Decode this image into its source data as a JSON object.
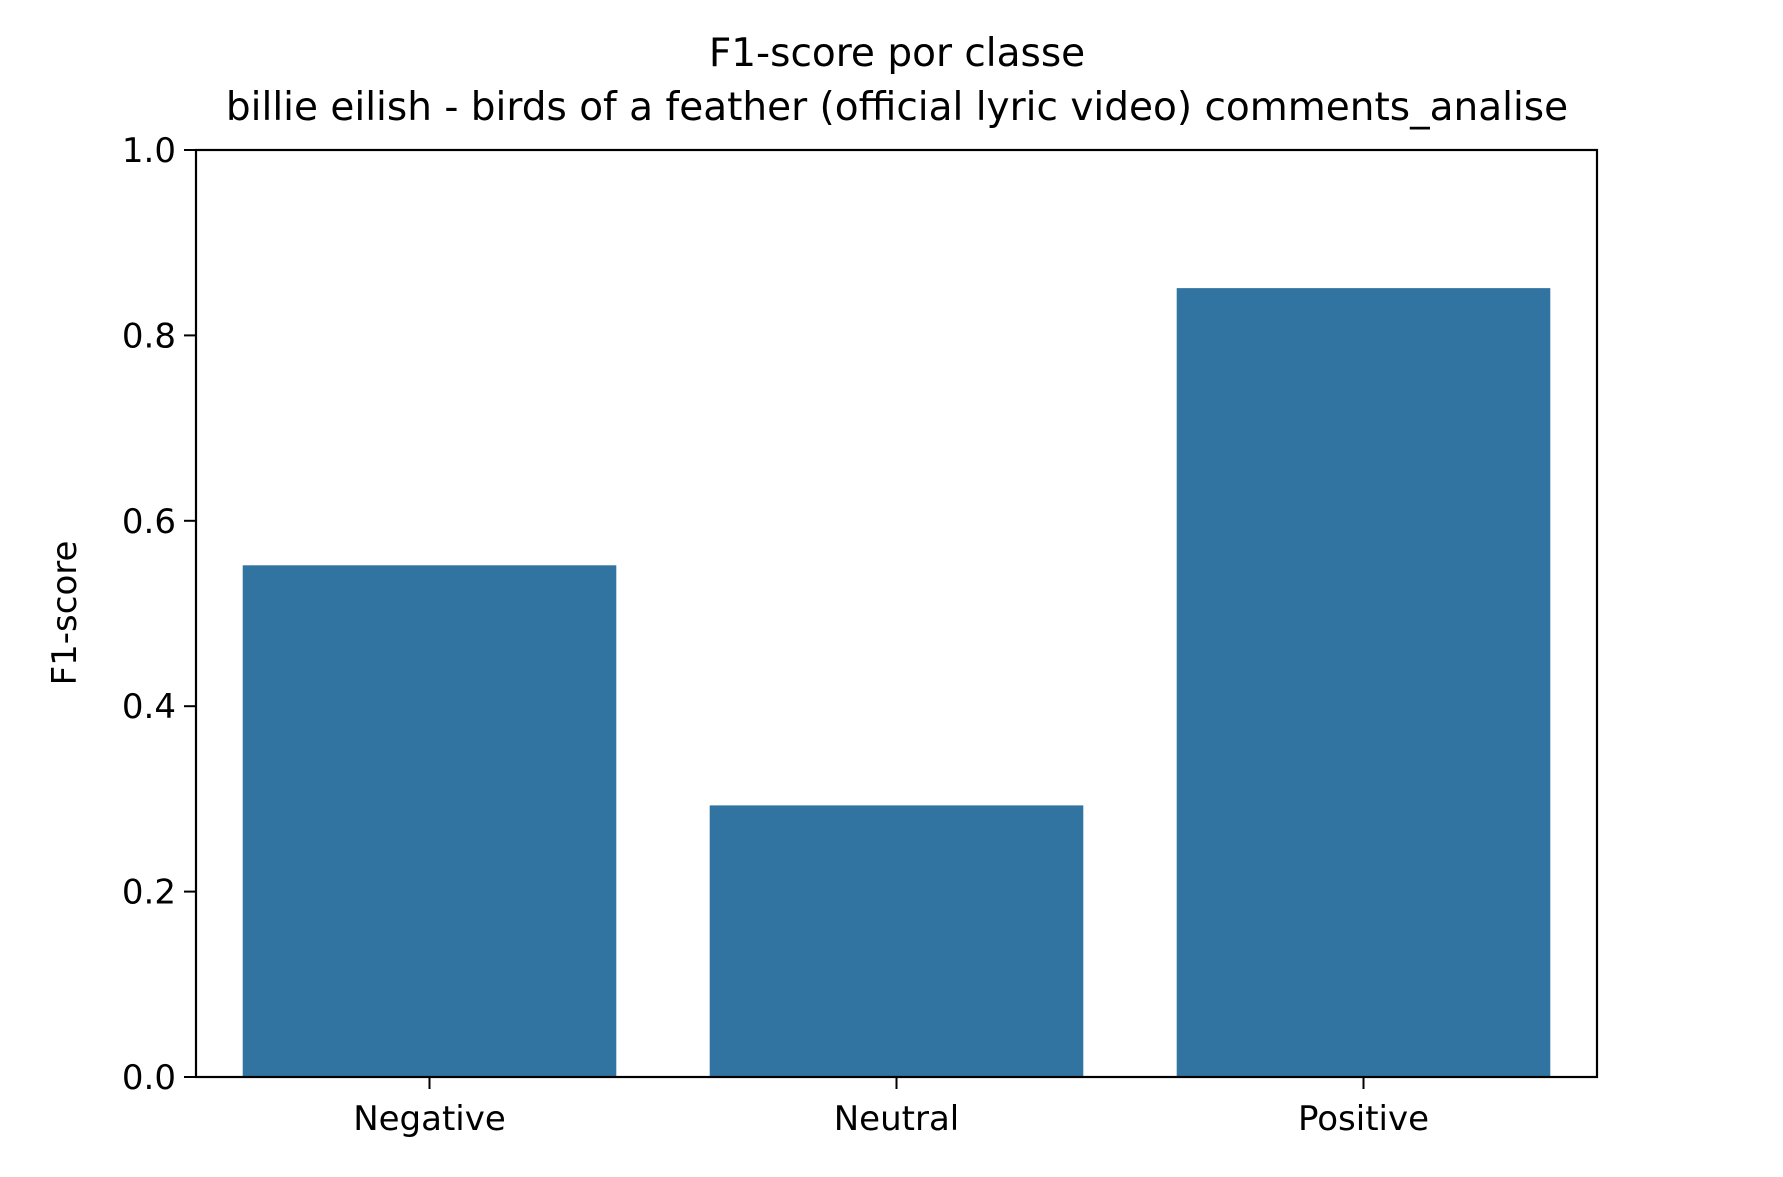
{
  "chart_data": {
    "type": "bar",
    "title": "F1-score por classe",
    "subtitle": "billie eilish - birds of a feather (official lyric video) comments_analise",
    "xlabel": "",
    "ylabel": "F1-score",
    "categories": [
      "Negative",
      "Neutral",
      "Positive"
    ],
    "values": [
      0.552,
      0.293,
      0.851
    ],
    "ylim": [
      0,
      1.0
    ],
    "yticks": [
      0.0,
      0.2,
      0.4,
      0.6,
      0.8,
      1.0
    ],
    "ytick_labels": [
      "0.0",
      "0.2",
      "0.4",
      "0.6",
      "0.8",
      "1.0"
    ],
    "grid": false,
    "legend": "none",
    "colors": {
      "bar": "#3274a1",
      "axis": "#000000",
      "background": "#ffffff"
    }
  }
}
